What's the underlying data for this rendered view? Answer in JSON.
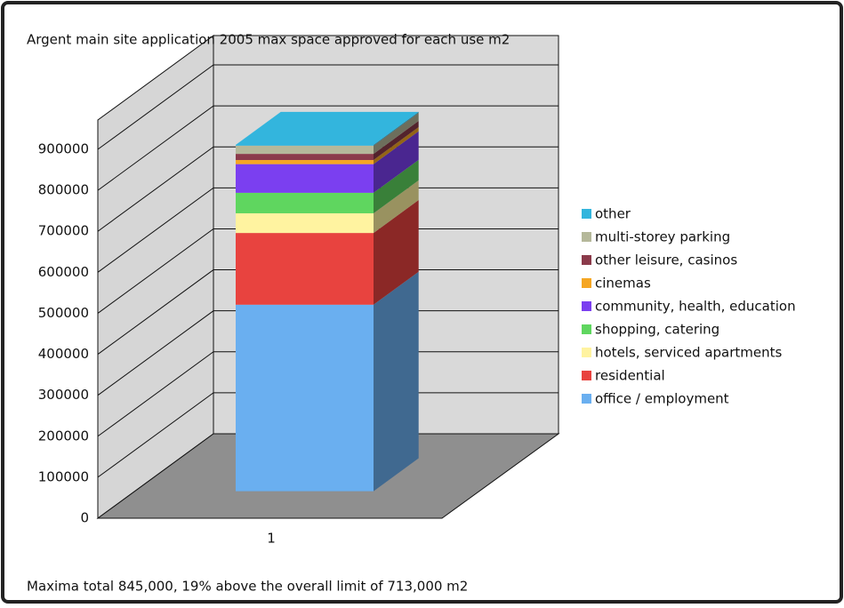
{
  "chart_data": {
    "type": "stacked_bar_3d",
    "title": "Argent main site application 2005 max space approved for each use  m2",
    "annotation": "Maxima total 845,000, 19% above the overall limit of 713,000  m2",
    "categories": [
      "1"
    ],
    "series": [
      {
        "name": "office / employment",
        "color": "#6aaff0",
        "values": [
          455000
        ]
      },
      {
        "name": "residential",
        "color": "#e8433f",
        "values": [
          175000
        ]
      },
      {
        "name": "hotels, serviced apartments",
        "color": "#fff3a0",
        "values": [
          48000
        ]
      },
      {
        "name": "shopping, catering",
        "color": "#5fd65f",
        "values": [
          50000
        ]
      },
      {
        "name": "community, health, education",
        "color": "#7b3ff0",
        "values": [
          70000
        ]
      },
      {
        "name": "cinemas",
        "color": "#f5a623",
        "values": [
          10000
        ]
      },
      {
        "name": "other leisure, casinos",
        "color": "#8b3a4a",
        "values": [
          15000
        ]
      },
      {
        "name": "multi-storey parking",
        "color": "#b5b89a",
        "values": [
          20000
        ]
      },
      {
        "name": "other",
        "color": "#33b5dd",
        "values": [
          2000
        ]
      }
    ],
    "ylim": [
      0,
      900000
    ],
    "yticks": [
      0,
      100000,
      200000,
      300000,
      400000,
      500000,
      600000,
      700000,
      800000,
      900000
    ],
    "grid": true,
    "legend": "right"
  }
}
